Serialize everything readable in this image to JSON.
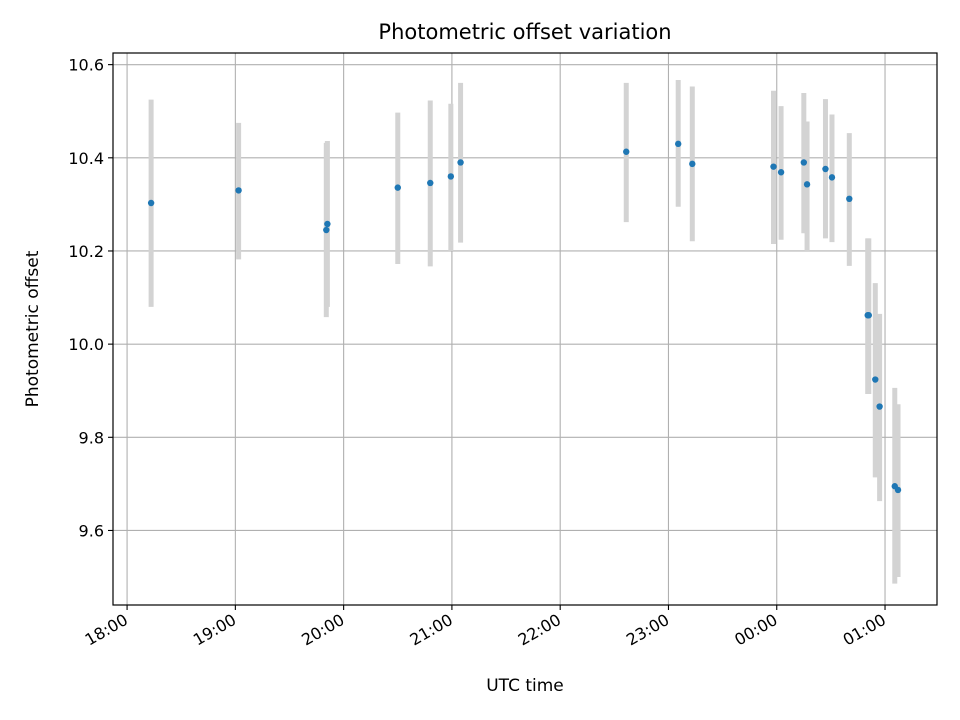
{
  "chart_data": {
    "type": "scatter",
    "title": "Photometric offset variation",
    "xlabel": "UTC time",
    "ylabel": "Photometric offset",
    "x_unit": "UTC hours; values past 24 are after midnight",
    "xlim": [
      17.87,
      25.48
    ],
    "ylim": [
      9.44,
      10.625
    ],
    "grid": true,
    "colors": {
      "point": "#1f77b4",
      "errorbar": "#d3d3d3"
    },
    "x_ticks": [
      {
        "value": 18,
        "label": "18:00"
      },
      {
        "value": 19,
        "label": "19:00"
      },
      {
        "value": 20,
        "label": "20:00"
      },
      {
        "value": 21,
        "label": "21:00"
      },
      {
        "value": 22,
        "label": "22:00"
      },
      {
        "value": 23,
        "label": "23:00"
      },
      {
        "value": 24,
        "label": "00:00"
      },
      {
        "value": 25,
        "label": "01:00"
      }
    ],
    "y_ticks": [
      {
        "value": 9.6,
        "label": "9.6"
      },
      {
        "value": 9.8,
        "label": "9.8"
      },
      {
        "value": 10.0,
        "label": "10.0"
      },
      {
        "value": 10.2,
        "label": "10.2"
      },
      {
        "value": 10.4,
        "label": "10.4"
      },
      {
        "value": 10.6,
        "label": "10.6"
      }
    ],
    "points": [
      {
        "x": 18.222,
        "y": 10.303,
        "low": 10.08,
        "high": 10.525
      },
      {
        "x": 19.03,
        "y": 10.33,
        "low": 10.182,
        "high": 10.475
      },
      {
        "x": 19.84,
        "y": 10.245,
        "low": 10.058,
        "high": 10.432
      },
      {
        "x": 19.85,
        "y": 10.258,
        "low": 10.08,
        "high": 10.436
      },
      {
        "x": 20.5,
        "y": 10.336,
        "low": 10.172,
        "high": 10.497
      },
      {
        "x": 20.8,
        "y": 10.346,
        "low": 10.167,
        "high": 10.523
      },
      {
        "x": 20.99,
        "y": 10.36,
        "low": 10.2,
        "high": 10.516
      },
      {
        "x": 21.08,
        "y": 10.39,
        "low": 10.218,
        "high": 10.561
      },
      {
        "x": 22.61,
        "y": 10.413,
        "low": 10.262,
        "high": 10.561
      },
      {
        "x": 23.09,
        "y": 10.43,
        "low": 10.295,
        "high": 10.567
      },
      {
        "x": 23.22,
        "y": 10.387,
        "low": 10.221,
        "high": 10.553
      },
      {
        "x": 23.97,
        "y": 10.381,
        "low": 10.215,
        "high": 10.544
      },
      {
        "x": 24.04,
        "y": 10.369,
        "low": 10.224,
        "high": 10.511
      },
      {
        "x": 24.25,
        "y": 10.39,
        "low": 10.238,
        "high": 10.539
      },
      {
        "x": 24.28,
        "y": 10.343,
        "low": 10.2,
        "high": 10.478
      },
      {
        "x": 24.45,
        "y": 10.376,
        "low": 10.227,
        "high": 10.526
      },
      {
        "x": 24.51,
        "y": 10.358,
        "low": 10.219,
        "high": 10.493
      },
      {
        "x": 24.67,
        "y": 10.312,
        "low": 10.168,
        "high": 10.453
      },
      {
        "x": 24.84,
        "y": 10.062,
        "low": 9.893,
        "high": 10.227
      },
      {
        "x": 24.85,
        "y": 10.062,
        "low": 9.893,
        "high": 10.227
      },
      {
        "x": 24.91,
        "y": 9.924,
        "low": 9.714,
        "high": 10.131
      },
      {
        "x": 24.95,
        "y": 9.866,
        "low": 9.663,
        "high": 10.065
      },
      {
        "x": 25.09,
        "y": 9.695,
        "low": 9.486,
        "high": 9.906
      },
      {
        "x": 25.12,
        "y": 9.687,
        "low": 9.5,
        "high": 9.871
      }
    ]
  }
}
